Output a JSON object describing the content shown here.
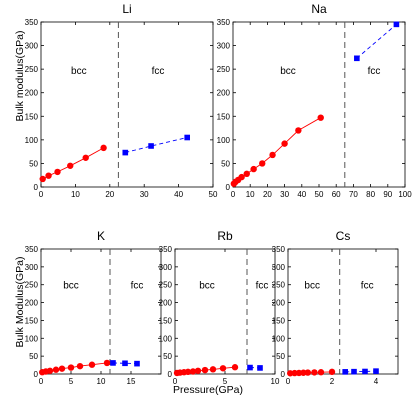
{
  "figure": {
    "top_ylabel": "Bulk modulus(GPa)",
    "bottom_ylabel": "Bulk Modulus(GPa)",
    "bottom_xlabel": "Pressure(GPa)"
  },
  "colors": {
    "bcc": "#ff0000",
    "fcc": "#0000ff",
    "axis": "#000000",
    "boundary": "#555555"
  },
  "chart_data": [
    {
      "type": "scatter",
      "title": "Li",
      "xlim": [
        0,
        50
      ],
      "ylim": [
        0,
        350
      ],
      "xticks": [
        0,
        10,
        20,
        30,
        40,
        50
      ],
      "yticks": [
        0,
        50,
        100,
        150,
        200,
        250,
        300,
        350
      ],
      "boundary_x": 22.5,
      "labels": [
        {
          "text": "bcc",
          "x": 11,
          "y": 240
        },
        {
          "text": "fcc",
          "x": 34,
          "y": 240
        }
      ],
      "series": [
        {
          "phase": "bcc",
          "marker": "circle",
          "line": "solid",
          "x": [
            0.5,
            2.2,
            4.8,
            8.5,
            13,
            18.2
          ],
          "y": [
            17,
            24,
            32,
            45,
            62,
            83
          ]
        },
        {
          "phase": "fcc",
          "marker": "square",
          "line": "dashed",
          "x": [
            24.5,
            32,
            42.5
          ],
          "y": [
            73,
            87,
            105
          ]
        }
      ]
    },
    {
      "type": "scatter",
      "title": "Na",
      "xlim": [
        0,
        100
      ],
      "ylim": [
        0,
        350
      ],
      "xticks": [
        0,
        10,
        20,
        30,
        40,
        50,
        60,
        70,
        80,
        90,
        100
      ],
      "yticks": [
        0,
        50,
        100,
        150,
        200,
        250,
        300,
        350
      ],
      "boundary_x": 65,
      "labels": [
        {
          "text": "bcc",
          "x": 32,
          "y": 240
        },
        {
          "text": "fcc",
          "x": 82,
          "y": 240
        }
      ],
      "series": [
        {
          "phase": "bcc",
          "marker": "circle",
          "line": "solid",
          "x": [
            0.5,
            1.5,
            3,
            5,
            8,
            12,
            17,
            23,
            30,
            38,
            51
          ],
          "y": [
            7,
            11,
            15,
            21,
            28,
            38,
            50,
            68,
            92,
            120,
            147
          ]
        },
        {
          "phase": "fcc",
          "marker": "square",
          "line": "dashed",
          "x": [
            72,
            95
          ],
          "y": [
            273,
            345
          ]
        }
      ]
    },
    {
      "type": "scatter",
      "title": "K",
      "xlim": [
        0,
        20
      ],
      "ylim": [
        0,
        350
      ],
      "xticks": [
        0,
        5,
        10,
        15
      ],
      "yticks": [
        0,
        50,
        100,
        150,
        200,
        250,
        300,
        350
      ],
      "boundary_x": 11.5,
      "labels": [
        {
          "text": "bcc",
          "x": 5,
          "y": 240
        },
        {
          "text": "fcc",
          "x": 16,
          "y": 240
        }
      ],
      "series": [
        {
          "phase": "bcc",
          "marker": "circle",
          "line": "solid",
          "x": [
            0.2,
            0.8,
            1.5,
            2.5,
            3.5,
            5,
            6.5,
            8.5,
            11
          ],
          "y": [
            5,
            7,
            9,
            12,
            15,
            18,
            22,
            26,
            31
          ]
        },
        {
          "phase": "fcc",
          "marker": "square",
          "line": "dashed",
          "x": [
            12,
            14,
            16
          ],
          "y": [
            31,
            30,
            29
          ]
        }
      ]
    },
    {
      "type": "scatter",
      "title": "Rb",
      "xlim": [
        0,
        10
      ],
      "ylim": [
        0,
        350
      ],
      "xticks": [
        0,
        5,
        10
      ],
      "yticks": [
        0,
        50,
        100,
        150,
        200,
        250,
        300,
        350
      ],
      "boundary_x": 7.2,
      "labels": [
        {
          "text": "bcc",
          "x": 3.2,
          "y": 240
        },
        {
          "text": "fcc",
          "x": 8.7,
          "y": 240
        }
      ],
      "series": [
        {
          "phase": "bcc",
          "marker": "circle",
          "line": "solid",
          "x": [
            0.2,
            0.5,
            0.9,
            1.3,
            1.8,
            2.3,
            3,
            3.8,
            4.8,
            6
          ],
          "y": [
            3,
            4,
            5,
            6,
            7,
            9,
            11,
            13,
            16,
            19
          ]
        },
        {
          "phase": "fcc",
          "marker": "square",
          "line": "dashed",
          "x": [
            7.5,
            8.5
          ],
          "y": [
            18,
            17
          ]
        }
      ]
    },
    {
      "type": "scatter",
      "title": "Cs",
      "xlim": [
        0,
        5
      ],
      "ylim": [
        0,
        350
      ],
      "xticks": [
        0,
        2,
        4
      ],
      "yticks": [
        0,
        50,
        100,
        150,
        200,
        250,
        300,
        350
      ],
      "boundary_x": 2.35,
      "labels": [
        {
          "text": "bcc",
          "x": 1.1,
          "y": 240
        },
        {
          "text": "fcc",
          "x": 3.6,
          "y": 240
        }
      ],
      "series": [
        {
          "phase": "bcc",
          "marker": "circle",
          "line": "solid",
          "x": [
            0.1,
            0.3,
            0.5,
            0.7,
            0.9,
            1.2,
            1.5,
            2
          ],
          "y": [
            2,
            2.5,
            3,
            3.5,
            4,
            4.5,
            5,
            6
          ]
        },
        {
          "phase": "fcc",
          "marker": "square",
          "line": "dashed",
          "x": [
            2.6,
            3,
            3.5,
            4
          ],
          "y": [
            6,
            6.5,
            7,
            8
          ]
        }
      ]
    }
  ]
}
